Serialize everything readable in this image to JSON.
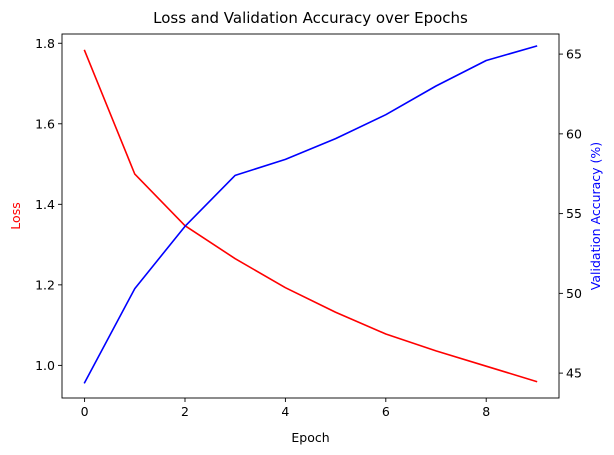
{
  "chart_data": {
    "type": "line",
    "title": "Loss and Validation Accuracy over Epochs",
    "xlabel": "Epoch",
    "ylabel_left": "Loss",
    "ylabel_right": "Validation Accuracy (%)",
    "x": [
      0,
      1,
      2,
      3,
      4,
      5,
      6,
      7,
      8,
      9
    ],
    "xlim": [
      -0.45,
      9.45
    ],
    "xticks": [
      0,
      2,
      4,
      6,
      8
    ],
    "ylim_left": [
      0.919,
      1.823
    ],
    "yticks_left": [
      1.0,
      1.2,
      1.4,
      1.6,
      1.8
    ],
    "ylim_right": [
      43.44,
      66.26
    ],
    "yticks_right": [
      45,
      50,
      55,
      60,
      65
    ],
    "grid": false,
    "series": [
      {
        "name": "Loss",
        "axis": "left",
        "color": "#ff0000",
        "values": [
          1.782,
          1.475,
          1.347,
          1.265,
          1.193,
          1.132,
          1.078,
          1.036,
          0.998,
          0.96
        ]
      },
      {
        "name": "Validation Accuracy (%)",
        "axis": "right",
        "color": "#0000ff",
        "values": [
          44.4,
          50.3,
          54.2,
          57.4,
          58.4,
          59.7,
          61.2,
          63.0,
          64.6,
          65.5
        ]
      }
    ]
  }
}
